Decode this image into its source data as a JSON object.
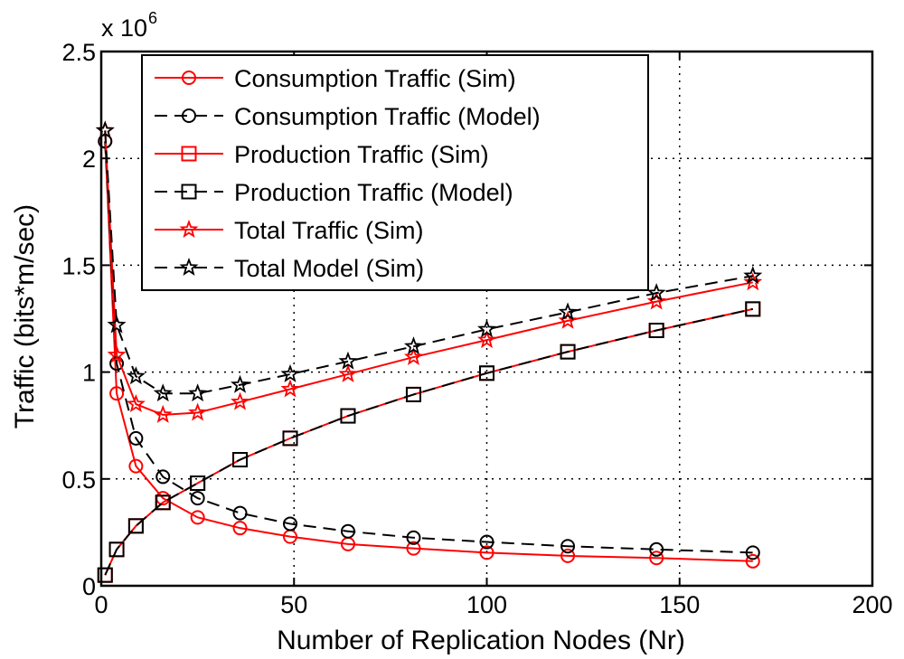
{
  "chart_data": {
    "type": "line",
    "title": "",
    "xlabel": "Number of Replication Nodes (Nr)",
    "ylabel": "Traffic (bits*m/sec)",
    "xlim": [
      0,
      200
    ],
    "ylim": [
      0,
      2500000
    ],
    "xticks": [
      0,
      50,
      100,
      150,
      200
    ],
    "yticks": [
      0,
      500000,
      1000000,
      1500000,
      2000000,
      2500000
    ],
    "xtick_labels": [
      "0",
      "50",
      "100",
      "150",
      "200"
    ],
    "ytick_labels": [
      "0",
      "0.5",
      "1",
      "1.5",
      "2",
      "2.5"
    ],
    "y_multiplier_base": "x 10",
    "y_multiplier_exponent": "6",
    "grid": true,
    "legend_position": "top-left",
    "colors": {
      "red": "#ff0000",
      "black": "#000000",
      "background": "#ffffff"
    },
    "series": [
      {
        "name": "Consumption Traffic (Sim)",
        "color": "#ff0000",
        "line_style": "solid",
        "marker": "circle",
        "x": [
          1,
          4,
          9,
          16,
          25,
          36,
          49,
          64,
          81,
          100,
          121,
          144,
          169
        ],
        "y": [
          2080000,
          900000,
          560000,
          410000,
          320000,
          270000,
          230000,
          195000,
          175000,
          155000,
          140000,
          130000,
          115000
        ]
      },
      {
        "name": "Consumption Traffic (Model)",
        "color": "#000000",
        "line_style": "dashed",
        "marker": "circle",
        "x": [
          1,
          4,
          9,
          16,
          25,
          36,
          49,
          64,
          81,
          100,
          121,
          144,
          169
        ],
        "y": [
          2080000,
          1040000,
          690000,
          510000,
          410000,
          340000,
          290000,
          255000,
          225000,
          205000,
          185000,
          170000,
          155000
        ]
      },
      {
        "name": "Production Traffic (Sim)",
        "color": "#ff0000",
        "line_style": "solid",
        "marker": "square",
        "x": [
          1,
          4,
          9,
          16,
          25,
          36,
          49,
          64,
          81,
          100,
          121,
          144,
          169
        ],
        "y": [
          50000,
          170000,
          280000,
          390000,
          480000,
          590000,
          690000,
          795000,
          895000,
          995000,
          1095000,
          1195000,
          1295000
        ]
      },
      {
        "name": "Production Traffic (Model)",
        "color": "#000000",
        "line_style": "dashed",
        "marker": "square",
        "x": [
          1,
          4,
          9,
          16,
          25,
          36,
          49,
          64,
          81,
          100,
          121,
          144,
          169
        ],
        "y": [
          50000,
          170000,
          280000,
          390000,
          480000,
          590000,
          690000,
          795000,
          895000,
          995000,
          1095000,
          1195000,
          1295000
        ]
      },
      {
        "name": "Total Traffic (Sim)",
        "color": "#ff0000",
        "line_style": "solid",
        "marker": "star",
        "x": [
          1,
          4,
          9,
          16,
          25,
          36,
          49,
          64,
          81,
          100,
          121,
          144,
          169
        ],
        "y": [
          2130000,
          1080000,
          850000,
          800000,
          810000,
          860000,
          920000,
          990000,
          1070000,
          1150000,
          1240000,
          1330000,
          1420000
        ]
      },
      {
        "name": "Total Model (Sim)",
        "color": "#000000",
        "line_style": "dashed",
        "marker": "star",
        "x": [
          1,
          4,
          9,
          16,
          25,
          36,
          49,
          64,
          81,
          100,
          121,
          144,
          169
        ],
        "y": [
          2130000,
          1220000,
          980000,
          900000,
          900000,
          940000,
          990000,
          1050000,
          1120000,
          1200000,
          1280000,
          1370000,
          1450000
        ]
      }
    ]
  }
}
